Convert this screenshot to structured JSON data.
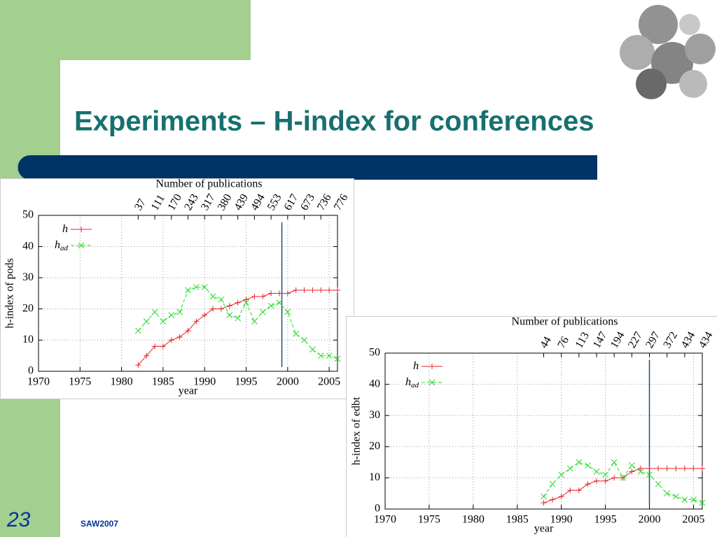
{
  "slide": {
    "title": "Experiments – H-index for conferences",
    "number": "23",
    "footer": "SAW2007"
  },
  "chart_data": [
    {
      "type": "line",
      "ylabel": "h-index of pods",
      "xlabel": "year",
      "xlim": [
        1970,
        2006
      ],
      "ylim": [
        0,
        50
      ],
      "xticks": [
        1970,
        1975,
        1980,
        1985,
        1990,
        1995,
        2000,
        2005
      ],
      "yticks": [
        0,
        10,
        20,
        30,
        40,
        50
      ],
      "grid": true,
      "x": [
        1982,
        1983,
        1984,
        1985,
        1986,
        1987,
        1988,
        1989,
        1990,
        1991,
        1992,
        1993,
        1994,
        1995,
        1996,
        1997,
        1998,
        1999,
        2000,
        2001,
        2002,
        2003,
        2004,
        2005,
        2006
      ],
      "series": [
        {
          "name": "h",
          "color": "#e8222a",
          "marker": "plus",
          "dash": false,
          "values": [
            2,
            5,
            8,
            8,
            10,
            11,
            13,
            16,
            18,
            20,
            20,
            21,
            22,
            23,
            24,
            24,
            25,
            25,
            25,
            26,
            26,
            26,
            26,
            26,
            26
          ]
        },
        {
          "name": "h",
          "subscript": "ad",
          "color": "#22dd22",
          "marker": "cross",
          "dash": true,
          "values": [
            13,
            16,
            19,
            16,
            18,
            19,
            26,
            27,
            27,
            24,
            23,
            18,
            17,
            22,
            16,
            19,
            21,
            22,
            19,
            12,
            10,
            7,
            5,
            5,
            4
          ]
        }
      ],
      "vline": 1999.3,
      "top_axis": {
        "label": "Number of publications",
        "ticks": [
          {
            "value": 1982,
            "label": "37"
          },
          {
            "value": 1984,
            "label": "111"
          },
          {
            "value": 1986,
            "label": "170"
          },
          {
            "value": 1988,
            "label": "243"
          },
          {
            "value": 1990,
            "label": "317"
          },
          {
            "value": 1992,
            "label": "380"
          },
          {
            "value": 1994,
            "label": "439"
          },
          {
            "value": 1996,
            "label": "494"
          },
          {
            "value": 1998,
            "label": "553"
          },
          {
            "value": 2000,
            "label": "617"
          },
          {
            "value": 2002,
            "label": "673"
          },
          {
            "value": 2004,
            "label": "736"
          },
          {
            "value": 2006,
            "label": "776"
          }
        ]
      }
    },
    {
      "type": "line",
      "ylabel": "h-index of edbt",
      "xlabel": "year",
      "xlim": [
        1970,
        2006
      ],
      "ylim": [
        0,
        50
      ],
      "xticks": [
        1970,
        1975,
        1980,
        1985,
        1990,
        1995,
        2000,
        2005
      ],
      "yticks": [
        0,
        10,
        20,
        30,
        40,
        50
      ],
      "grid": true,
      "x": [
        1988,
        1989,
        1990,
        1991,
        1992,
        1993,
        1994,
        1995,
        1996,
        1997,
        1998,
        1999,
        2000,
        2001,
        2002,
        2003,
        2004,
        2005,
        2006
      ],
      "series": [
        {
          "name": "h",
          "color": "#e8222a",
          "marker": "plus",
          "dash": false,
          "values": [
            2,
            3,
            4,
            6,
            6,
            8,
            9,
            9,
            10,
            10,
            12,
            13,
            13,
            13,
            13,
            13,
            13,
            13,
            13
          ]
        },
        {
          "name": "h",
          "subscript": "ad",
          "color": "#22dd22",
          "marker": "cross",
          "dash": true,
          "values": [
            4,
            8,
            11,
            13,
            15,
            14,
            12,
            11,
            15,
            10,
            14,
            12,
            11,
            8,
            5,
            4,
            3,
            3,
            2
          ]
        }
      ],
      "vline": 2000,
      "top_axis": {
        "label": "Number of publications",
        "ticks": [
          {
            "value": 1988,
            "label": "44"
          },
          {
            "value": 1990,
            "label": "76"
          },
          {
            "value": 1992,
            "label": "113"
          },
          {
            "value": 1994,
            "label": "147"
          },
          {
            "value": 1996,
            "label": "194"
          },
          {
            "value": 1998,
            "label": "227"
          },
          {
            "value": 2000,
            "label": "297"
          },
          {
            "value": 2002,
            "label": "372"
          },
          {
            "value": 2004,
            "label": "434"
          },
          {
            "value": 2006,
            "label": "434"
          }
        ]
      }
    }
  ]
}
